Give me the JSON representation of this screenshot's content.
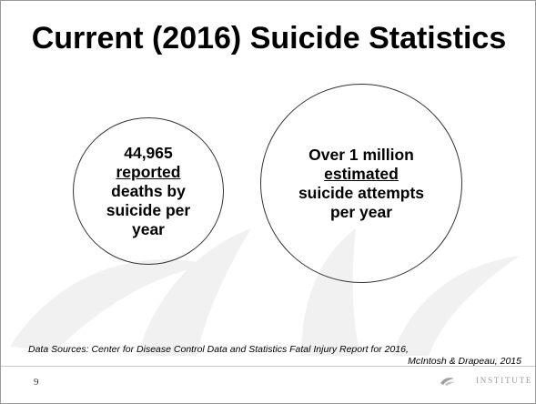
{
  "slide": {
    "title": "Current (2016) Suicide Statistics",
    "left_circle": {
      "number": "44,965",
      "underlined": "reported",
      "line3": "deaths by",
      "line4": "suicide per",
      "line5": "year"
    },
    "right_circle": {
      "line1": "Over 1 million",
      "underlined": "estimated",
      "line3": "suicide attempts",
      "line4": "per year"
    },
    "sources": {
      "line1": "Data Sources: Center for Disease Control Data and Statistics Fatal Injury Report for 2016,",
      "line2": "McIntosh & Drapeau, 2015"
    },
    "page_number": "9",
    "logo_text": "INSTITUTE",
    "watermark_color": "#f1f1f1"
  }
}
